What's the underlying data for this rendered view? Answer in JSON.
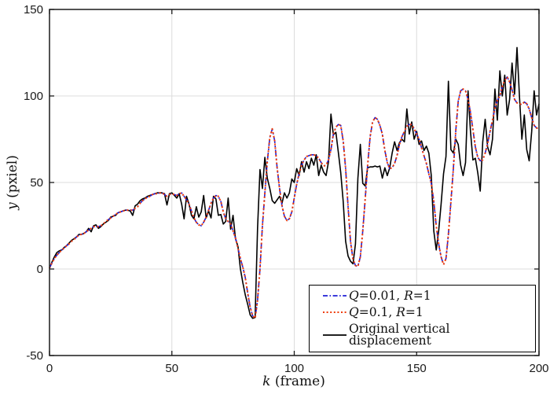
{
  "axes": {
    "xlabel": {
      "var": "k",
      "rest": " (frame)"
    },
    "ylabel": {
      "var": "y",
      "rest": " (pxiel)"
    },
    "x_tick_labels": [
      "0",
      "50",
      "100",
      "150",
      "200"
    ],
    "y_tick_labels": [
      "-50",
      "0",
      "50",
      "100",
      "150"
    ]
  },
  "legend": {
    "items": [
      {
        "v1": "Q",
        "t1": "=0.01, ",
        "v2": "R",
        "t2": "=1"
      },
      {
        "v1": "Q",
        "t1": "=0.1, ",
        "v2": "R",
        "t2": "=1"
      },
      {
        "label": "Original vertical displacement"
      }
    ]
  },
  "colors": {
    "q001_blue": "#1f1fd6",
    "q01_red": "#ee3c0a",
    "original_black": "#000000",
    "grid": "#dcdcdc",
    "axis": "#1a1a1a"
  },
  "chart_data": {
    "type": "line",
    "title": "",
    "xlabel": "k (frame)",
    "ylabel": "y (pxiel)",
    "xlim": [
      0,
      200
    ],
    "ylim": [
      -50,
      150
    ],
    "x_ticks": [
      0,
      50,
      100,
      150,
      200
    ],
    "y_ticks": [
      -50,
      0,
      50,
      100,
      150
    ],
    "grid": true,
    "legend_position": "lower right",
    "x_start": 0,
    "x_step": 1,
    "series": [
      {
        "name": "Q=0.01, R=1",
        "style": "dash-dot",
        "color": "#1f1fd6",
        "values": [
          0.5,
          3.5,
          6,
          8,
          9.5,
          11,
          12,
          13.5,
          14.5,
          16,
          17,
          18.5,
          19.5,
          20,
          20.5,
          21.5,
          22.5,
          23.5,
          24.5,
          24.5,
          24.5,
          25,
          26,
          27.5,
          28.5,
          29.5,
          30.5,
          31.5,
          32.5,
          33,
          33.5,
          34,
          34,
          34,
          34,
          35,
          36,
          38,
          39.5,
          40.5,
          41.5,
          42,
          43,
          43.5,
          43.5,
          44,
          44,
          43,
          42,
          43,
          43.5,
          43,
          42.5,
          43.5,
          44,
          42,
          40,
          37.5,
          33.5,
          29.5,
          27,
          25.5,
          25,
          27,
          30,
          34,
          38,
          41,
          42.5,
          42,
          39,
          33,
          29,
          27.5,
          26,
          22,
          18,
          12,
          6,
          1,
          -5,
          -14,
          -22,
          -27,
          -28.5,
          -18,
          0,
          25,
          44,
          62,
          76,
          81,
          74,
          58.5,
          46.5,
          36.5,
          30.5,
          28,
          29,
          33,
          41,
          49,
          55,
          60,
          63,
          65,
          65.5,
          66,
          66,
          65.5,
          64,
          61.5,
          59.5,
          60,
          63,
          69,
          78,
          82,
          83.5,
          83,
          74,
          58,
          36,
          16,
          5.5,
          2,
          1.5,
          7,
          22,
          40.5,
          60,
          76.5,
          85,
          87.5,
          86.5,
          83,
          78,
          68.5,
          61.5,
          58,
          58.5,
          61,
          65.5,
          72,
          76.5,
          79.5,
          82.5,
          83.5,
          83.5,
          81,
          78,
          75,
          70,
          65.5,
          61,
          55,
          49.5,
          39,
          25,
          14.5,
          7,
          2.5,
          6,
          20,
          39,
          58,
          80,
          97,
          103,
          104,
          103,
          98,
          90.5,
          80.5,
          70.5,
          64.5,
          62.5,
          63,
          67,
          72.5,
          79.5,
          86,
          93,
          97.5,
          100,
          105.5,
          109,
          111,
          108,
          103.5,
          98,
          96,
          95.5,
          95,
          96.5,
          95.5,
          92.5,
          87.5,
          83,
          81.5,
          81
        ]
      },
      {
        "name": "Q=0.1, R=1",
        "style": "dotted",
        "color": "#ee3c0a",
        "values": [
          0.5,
          3.5,
          6,
          8,
          9.5,
          11,
          12,
          13.5,
          14.5,
          16,
          17,
          18.5,
          19.5,
          20,
          20.5,
          21.5,
          22.5,
          23.5,
          24.5,
          24.5,
          24.5,
          25,
          26,
          27.5,
          28.5,
          29.5,
          30.5,
          31.5,
          32.5,
          33,
          33.5,
          34,
          34,
          34,
          34,
          35,
          36,
          38,
          39.5,
          40.5,
          41.5,
          42,
          43,
          43.5,
          43.5,
          44,
          44,
          43,
          42,
          43,
          43.5,
          43,
          42.5,
          43.5,
          44,
          42,
          40,
          37.5,
          33.5,
          29.5,
          27,
          25.5,
          25,
          27,
          30,
          34,
          38,
          41,
          42.5,
          42,
          39,
          33,
          29,
          27.5,
          26,
          22,
          18,
          12,
          6,
          1,
          -5,
          -14,
          -22,
          -27,
          -28.5,
          -18,
          0,
          25,
          44,
          62,
          76,
          81,
          74,
          58.5,
          46.5,
          36.5,
          30.5,
          28,
          29,
          33,
          41,
          49,
          55,
          60,
          63,
          65,
          65.5,
          66,
          66,
          65.5,
          64,
          61.5,
          59.5,
          60,
          63,
          69,
          78,
          82,
          83.5,
          83,
          74,
          58,
          36,
          16,
          5.5,
          2,
          1.5,
          7,
          22,
          40.5,
          60,
          76.5,
          85,
          87.5,
          86.5,
          83,
          78,
          68.5,
          61.5,
          58,
          58.5,
          61,
          65.5,
          72,
          76.5,
          79.5,
          82.5,
          83.5,
          83.5,
          81,
          78,
          75,
          70,
          65.5,
          61,
          55,
          49.5,
          39,
          25,
          14.5,
          7,
          2.5,
          6,
          20,
          39,
          58,
          80,
          97,
          103,
          104,
          103,
          98,
          90.5,
          80.5,
          70.5,
          64.5,
          62.5,
          63,
          67,
          72.5,
          79.5,
          86,
          93,
          97.5,
          100,
          105.5,
          109,
          111,
          108,
          103.5,
          98,
          96,
          95.5,
          95,
          96.5,
          95.5,
          92.5,
          87.5,
          83,
          81.5,
          81
        ]
      },
      {
        "name": "Original vertical displacement",
        "style": "solid",
        "color": "#000000",
        "values": [
          0.5,
          4,
          7,
          9.5,
          10.5,
          11,
          12.5,
          13.5,
          15,
          16.5,
          17.5,
          18.5,
          20,
          20,
          20.5,
          21.5,
          23.5,
          21.5,
          25,
          25.5,
          23.5,
          24.5,
          26,
          27,
          28,
          30,
          30.5,
          31,
          32.5,
          33,
          33.5,
          34,
          34,
          33.5,
          31,
          36.5,
          37.5,
          39.5,
          40.5,
          41,
          42,
          42.5,
          43,
          43.5,
          44,
          44,
          44,
          43.5,
          37,
          43.5,
          44,
          42.5,
          41,
          43.5,
          37.5,
          29,
          42,
          37.5,
          31,
          29,
          36,
          30,
          33,
          42.5,
          29.5,
          33.5,
          29.5,
          42,
          40.5,
          31,
          31.5,
          26,
          27.5,
          41,
          23,
          31,
          17.5,
          13,
          0,
          -8,
          -15,
          -20.5,
          -26.5,
          -28.5,
          -28,
          23.5,
          57.5,
          46.5,
          64.5,
          52.5,
          46.5,
          39.5,
          38,
          40,
          42,
          38,
          44,
          41,
          44,
          52,
          50,
          58,
          54,
          62,
          56,
          62,
          58,
          64,
          60,
          66,
          54,
          60,
          56,
          54,
          62,
          89.5,
          77.5,
          79,
          67.5,
          55.5,
          39,
          16,
          7.5,
          4.5,
          3,
          14.5,
          52.5,
          72,
          49.5,
          48,
          58.5,
          59,
          59,
          59.5,
          59,
          59.5,
          52.5,
          58.5,
          54,
          58.5,
          67,
          73.5,
          68.5,
          73,
          75,
          73.5,
          92.5,
          78,
          85,
          75,
          79.5,
          72,
          74,
          68.5,
          71,
          67,
          54,
          22,
          11,
          22,
          37.5,
          55,
          65,
          108.5,
          69,
          67,
          75,
          72,
          60,
          54,
          61.5,
          103,
          79.5,
          63,
          64,
          55.5,
          45,
          73.5,
          86.5,
          70.5,
          66,
          75,
          104,
          86,
          114.5,
          100,
          112,
          89,
          98,
          119,
          101,
          128,
          100,
          75,
          89,
          69,
          62.5,
          79.5,
          103,
          89,
          95.5
        ]
      }
    ]
  }
}
